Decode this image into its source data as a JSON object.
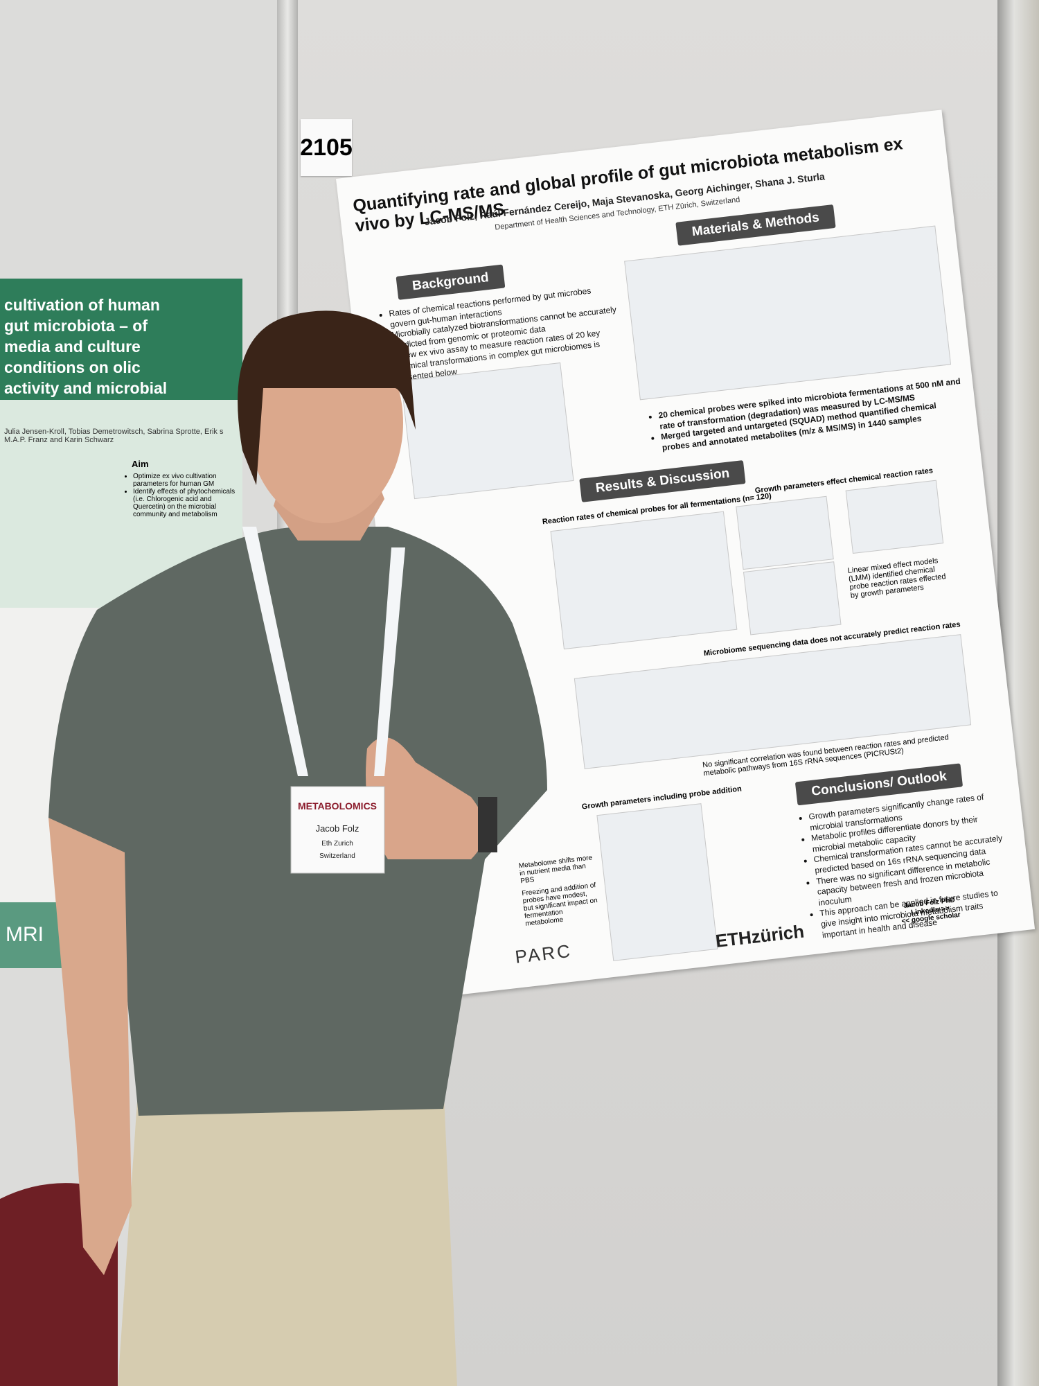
{
  "board_number": "2105",
  "poster": {
    "title": "Quantifying rate and global profile of gut microbiota metabolism ex vivo by LC-MS/MS",
    "authors": "Jacob Folz, Raúl Fernández Cereijo, Maja Stevanoska, Georg Aichinger, Shana J. Sturla",
    "affiliation": "Department of Health Sciences and Technology, ETH Zürich, Switzerland",
    "background": {
      "heading": "Background",
      "bullets": [
        "Rates of chemical reactions performed by gut microbes govern gut-human interactions",
        "Microbially catalyzed biotransformations cannot be accurately predicted from genomic or proteomic data",
        "A new ex vivo assay to measure reaction rates of 20 key chemical transformations in complex gut microbiomes is presented below"
      ]
    },
    "methods": {
      "heading": "Materials & Methods",
      "bullets": [
        "20 chemical probes were spiked into microbiota fermentations at 500 nM and rate of transformation (degradation) was measured by LC-MS/MS",
        "Merged targeted and untargeted (SQUAD) method quantified chemical probes and annotated metabolites (m/z & MS/MS) in 1440 samples"
      ]
    },
    "results": {
      "heading": "Results & Discussion",
      "subheadings": [
        "Reaction rates of chemical probes for all fermentations (n= 120)",
        "Growth parameters effect chemical reaction rates",
        "Microbiome sequencing data does not accurately predict reaction rates",
        "Growth parameters including probe addition"
      ],
      "notes": [
        "Linear mixed effect models (LMM) identified chemical probe reaction rates effected by growth parameters",
        "No significant correlation was found between reaction rates and predicted metabolic pathways from 16S rRNA sequences (PICRUSt2)",
        "Metabolome shifts more in nutrient media than PBS",
        "Freezing and addition of probes have modest, but significant impact on fermentation metabolome"
      ]
    },
    "conclusions": {
      "heading": "Conclusions/ Outlook",
      "bullets": [
        "Growth parameters significantly change rates of microbial transformations",
        "Metabolic profiles differentiate donors by their microbial metabolic capacity",
        "Chemical transformation rates cannot be accurately predicted based on 16s rRNA sequencing data",
        "There was no significant difference in metabolic capacity between fresh and frozen microbiota inoculum",
        "This approach can be applied in future studies to give insight into microbiota metabolism traits important in health and disease"
      ]
    },
    "logos": [
      "PARC",
      "ETHzürich"
    ],
    "contact": [
      "Jacob Folz PhD",
      "LinkedIn >>",
      "<< google scholar"
    ]
  },
  "badge": {
    "event": "METABOLOMICS",
    "name": "Jacob Folz",
    "org": "Eth Zurich",
    "country": "Switzerland"
  },
  "left_poster": {
    "title": "cultivation of human gut microbiota – of media and culture conditions on olic activity and microbial diversity",
    "authors": "Julia Jensen-Kroll, Tobias Demetrowitsch, Sabrina Sprotte, Erik s M.A.P. Franz and Karin Schwarz",
    "aim_heading": "Aim",
    "aim_bullets": [
      "Optimize ex vivo cultivation parameters for human GM",
      "Identify effects of phytochemicals (i.e. Chlorogenic acid and Quercetin) on the microbial community and metabolism"
    ],
    "logo": "MRI"
  }
}
